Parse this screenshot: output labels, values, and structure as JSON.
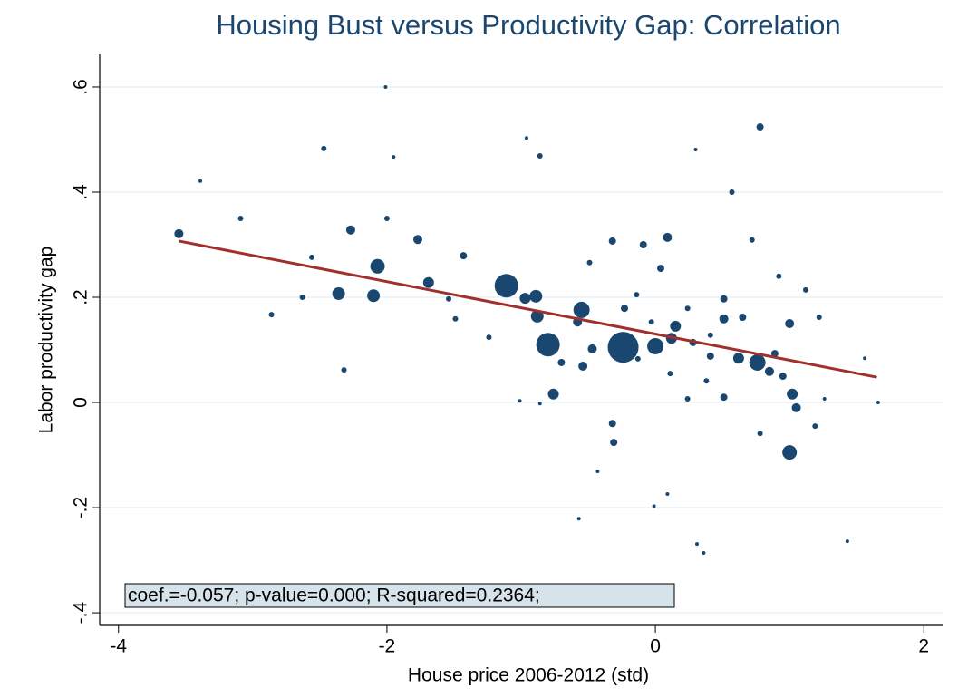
{
  "chart_data": {
    "type": "scatter",
    "title": "Housing Bust versus Productivity Gap: Correlation",
    "x_label": "House price 2006-2012 (std)",
    "y_label": "Labor productivity gap",
    "annotation": "coef.=-0.057; p-value=0.000; R-squared=0.2364;",
    "color": "#1a476f",
    "grid": true,
    "xlim": [
      -4.14,
      2.14
    ],
    "ylim": [
      -0.424,
      0.662
    ],
    "xticks": [
      -4,
      -2,
      0,
      2
    ],
    "yticks": [
      {
        "value": 0.6,
        "label": ".6"
      },
      {
        "value": 0.4,
        "label": ".4"
      },
      {
        "value": 0.2,
        "label": ".2"
      },
      0,
      {
        "value": -0.2,
        "label": "-.2"
      },
      {
        "value": -0.4,
        "label": "-.4"
      }
    ],
    "x": [
      -0.24,
      -1.11,
      -0.8,
      0.0,
      0.76,
      -0.55,
      -2.07,
      -2.36,
      -2.1,
      -0.89,
      1.0,
      -0.88,
      -3.55,
      -2.27,
      -1.77,
      -1.69,
      -0.97,
      -0.76,
      0.78,
      1.02,
      0.09,
      0.15,
      0.12,
      0.51,
      0.62,
      1.0,
      0.85,
      1.05,
      -0.58,
      -0.47,
      -0.54,
      -0.32,
      -0.31,
      -2.47,
      -0.86,
      -3.09,
      -2.86,
      -2.32,
      -0.49,
      -0.09,
      -0.32,
      0.04,
      0.28,
      0.41,
      0.57,
      0.72,
      0.51,
      0.65,
      0.89,
      0.95,
      0.24,
      0.38,
      0.51,
      0.78,
      1.19,
      1.22,
      1.12,
      0.92,
      0.11,
      -0.13,
      -0.7,
      -1.24,
      -1.49,
      -1.43,
      -1.54,
      -2.0,
      -2.56,
      -2.63,
      -3.39,
      -1.95,
      -2.01,
      -0.96,
      0.3,
      1.43,
      -0.57,
      0.31,
      0.36,
      -0.01,
      0.09,
      -0.43,
      -1.01,
      -0.86,
      1.66,
      1.56,
      1.26,
      -0.14,
      0.24,
      -0.23,
      -0.03,
      0.41
    ],
    "y": [
      0.105,
      0.222,
      0.11,
      0.107,
      0.076,
      0.176,
      0.259,
      0.207,
      0.203,
      0.202,
      -0.095,
      0.164,
      0.321,
      0.328,
      0.31,
      0.228,
      0.198,
      0.016,
      0.524,
      0.016,
      0.314,
      0.145,
      0.122,
      0.159,
      0.084,
      0.15,
      0.059,
      -0.01,
      0.153,
      0.102,
      0.069,
      -0.04,
      -0.076,
      0.483,
      0.469,
      0.35,
      0.167,
      0.062,
      0.266,
      0.3,
      0.307,
      0.255,
      0.114,
      0.088,
      0.4,
      0.309,
      0.197,
      0.162,
      0.093,
      0.05,
      0.007,
      0.041,
      0.01,
      -0.059,
      -0.045,
      0.162,
      0.214,
      0.24,
      0.055,
      0.083,
      0.076,
      0.124,
      0.159,
      0.279,
      0.197,
      0.35,
      0.276,
      0.2,
      0.421,
      0.467,
      0.6,
      0.503,
      0.481,
      -0.264,
      -0.221,
      -0.269,
      -0.286,
      -0.197,
      -0.174,
      -0.131,
      0.003,
      -0.002,
      0.0,
      0.084,
      0.007,
      0.205,
      0.179,
      0.179,
      0.153,
      0.128
    ],
    "sizes": [
      289,
      169,
      169,
      81,
      81,
      81,
      64,
      49,
      49,
      49,
      64,
      49,
      25,
      25,
      25,
      36,
      36,
      36,
      16,
      36,
      25,
      36,
      36,
      25,
      36,
      25,
      25,
      25,
      25,
      25,
      25,
      16,
      16,
      9,
      9,
      9,
      9,
      9,
      9,
      16,
      16,
      16,
      16,
      16,
      9,
      9,
      16,
      16,
      16,
      16,
      9,
      9,
      16,
      9,
      9,
      9,
      9,
      9,
      9,
      9,
      16,
      9,
      9,
      16,
      9,
      9,
      9,
      9,
      4,
      4,
      4,
      4,
      4,
      4,
      4,
      4,
      4,
      4,
      4,
      4,
      4,
      4,
      4,
      4,
      4,
      9,
      9,
      16,
      9,
      9
    ],
    "fit_line": {
      "color": "#a0302d",
      "x": [
        -3.55,
        1.65
      ],
      "y": [
        0.307,
        0.048
      ]
    }
  }
}
